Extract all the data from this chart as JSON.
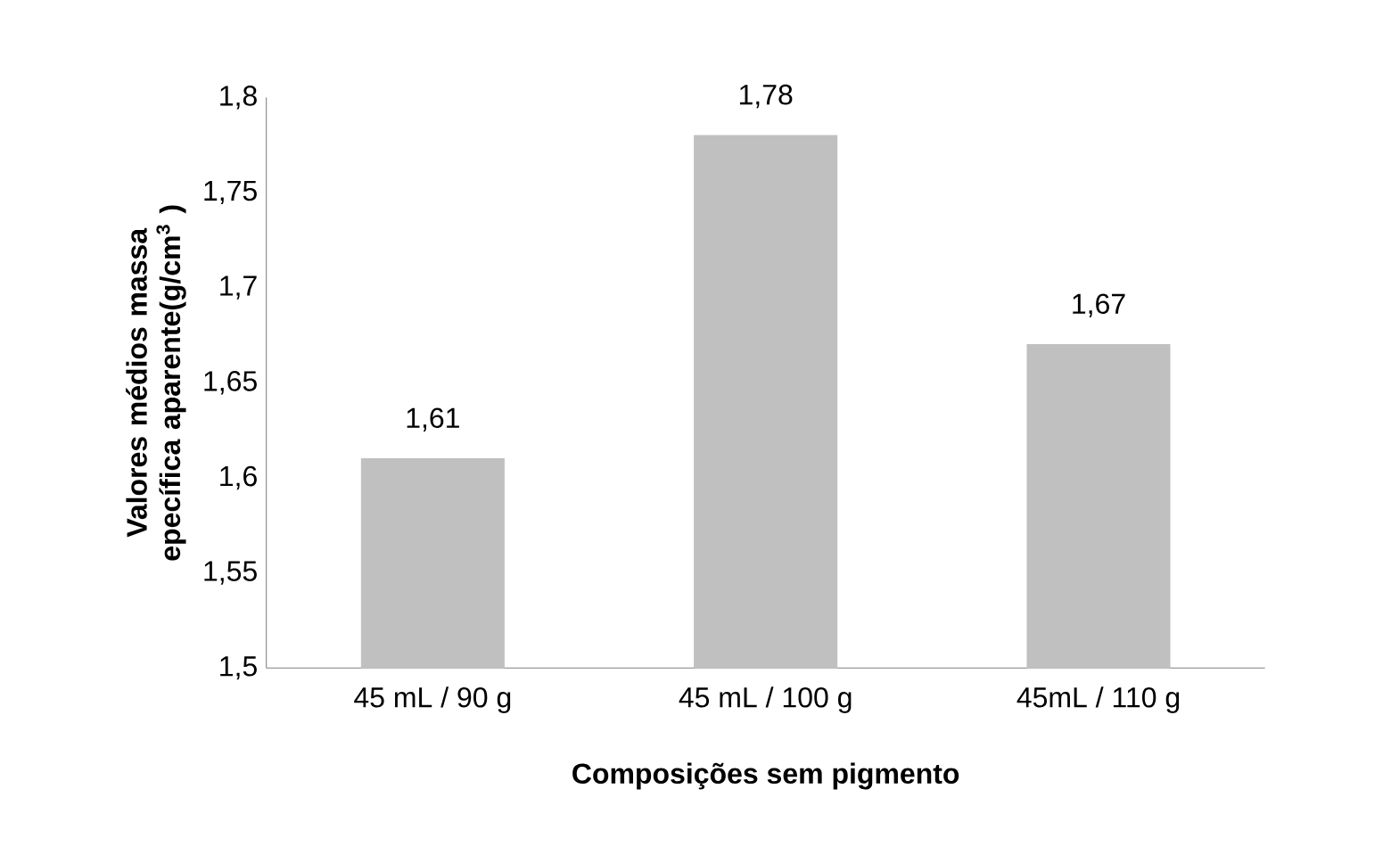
{
  "chart_data": {
    "type": "bar",
    "xlabel": "Composições sem pigmento",
    "ylabel": "Valores médios massa epecífica aparente(g/cm$^{3}$ )",
    "categories": [
      "45 mL / 90 g",
      "45 mL / 100 g",
      "45mL / 110 g"
    ],
    "values": [
      1.61,
      1.78,
      1.67
    ],
    "value_labels": [
      "1,61",
      "1,78",
      "1,67"
    ],
    "color": "#c0c0c0",
    "ylim": [
      1.5,
      1.8
    ],
    "yticks": [
      {
        "value": 1.5,
        "label": "1,5"
      },
      {
        "value": 1.55,
        "label": "1,55"
      },
      {
        "value": 1.6,
        "label": "1,6"
      },
      {
        "value": 1.65,
        "label": "1,65"
      },
      {
        "value": 1.7,
        "label": "1,7"
      },
      {
        "value": 1.75,
        "label": "1,75"
      },
      {
        "value": 1.8,
        "label": "1,8"
      }
    ],
    "grid": false
  }
}
